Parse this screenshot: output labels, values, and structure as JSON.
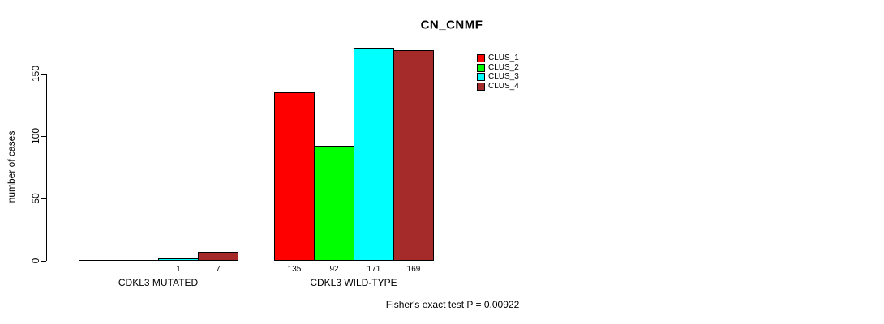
{
  "chart_data": {
    "type": "bar",
    "title": "CN_CNMF",
    "xlabel": "",
    "ylabel": "number of cases",
    "categories": [
      "CDKL3 MUTATED",
      "CDKL3 WILD-TYPE"
    ],
    "series": [
      {
        "name": "CLUS_1",
        "color": "#FF0000",
        "values": [
          0,
          135
        ]
      },
      {
        "name": "CLUS_2",
        "color": "#00FF00",
        "values": [
          0,
          92
        ]
      },
      {
        "name": "CLUS_3",
        "color": "#00FFFF",
        "values": [
          1,
          171
        ]
      },
      {
        "name": "CLUS_4",
        "color": "#A52A2A",
        "values": [
          7,
          169
        ]
      }
    ],
    "bar_value_labels": [
      [
        "",
        "",
        "1",
        "7"
      ],
      [
        "135",
        "92",
        "171",
        "169"
      ]
    ],
    "yticks": [
      0,
      50,
      100,
      150
    ],
    "ylim": [
      0,
      175
    ],
    "grid": false,
    "legend_position": "top-right",
    "legend": [
      "CLUS_1",
      "CLUS_2",
      "CLUS_3",
      "CLUS_4"
    ],
    "annotation": "Fisher's exact test P = 0.00922",
    "axis_color": "#000000",
    "background": "#FFFFFF"
  }
}
